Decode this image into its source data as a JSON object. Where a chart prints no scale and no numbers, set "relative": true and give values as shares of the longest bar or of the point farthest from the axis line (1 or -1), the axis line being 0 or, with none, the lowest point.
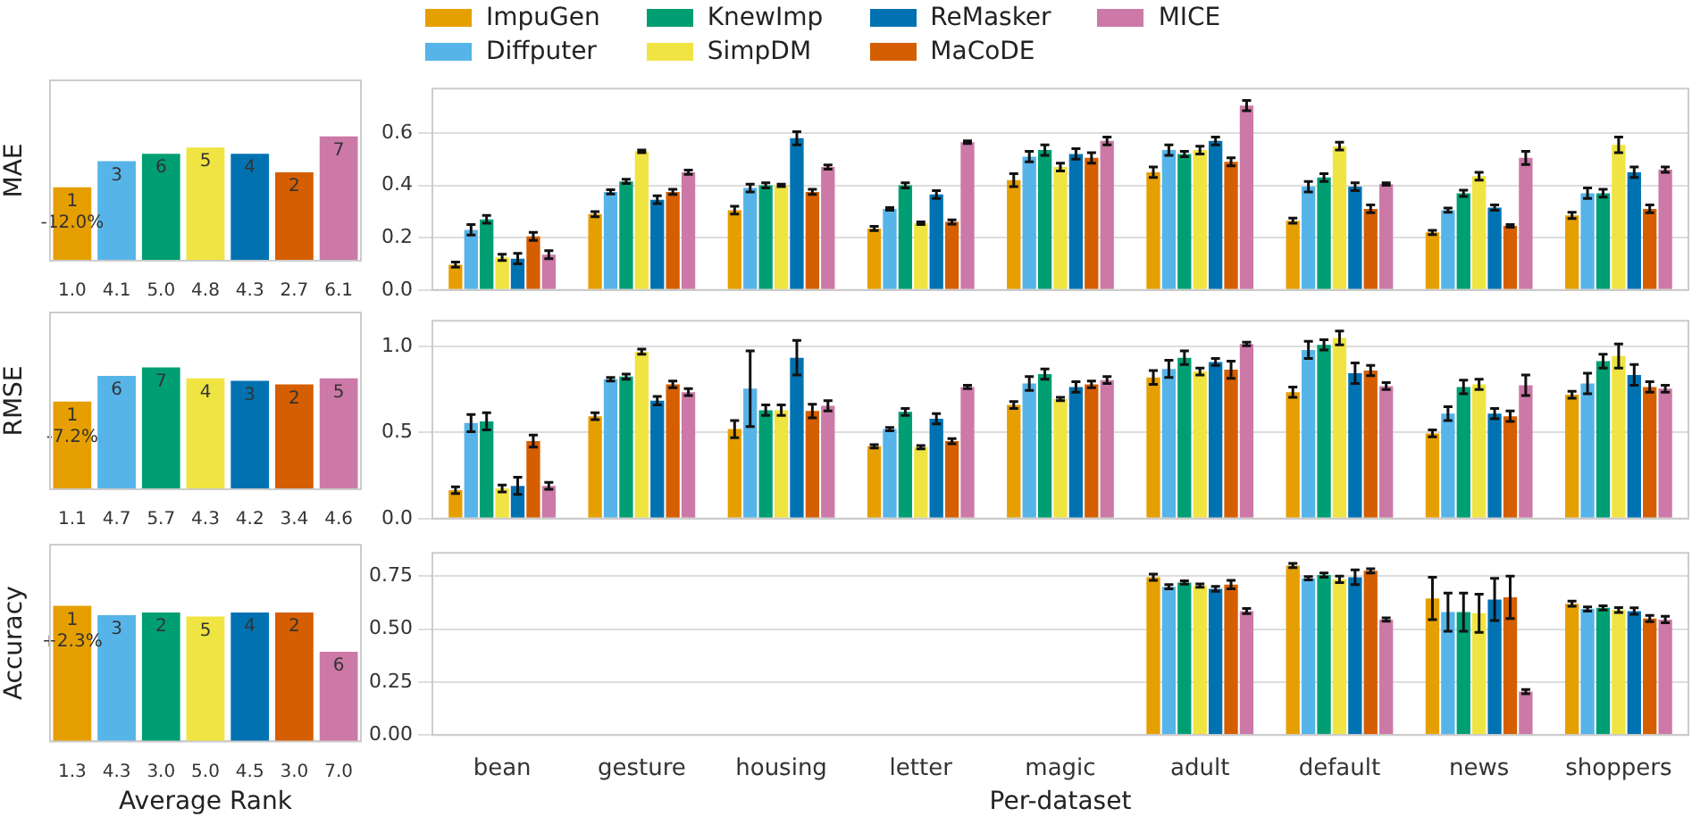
{
  "chart_data": [
    {
      "type": "bar",
      "ylabel": "MAE",
      "relative": true,
      "tick_labels": "x",
      "categories": [
        "1.0",
        "4.1",
        "5.0",
        "4.8",
        "4.3",
        "2.7",
        "6.1"
      ],
      "values": [
        0.59,
        0.8,
        0.86,
        0.91,
        0.86,
        0.71,
        1.0
      ],
      "colors": [
        "#e69f00",
        "#56b4e9",
        "#009e73",
        "#f0e442",
        "#0072b2",
        "#d55e00",
        "#cc79a7"
      ],
      "annotations": [
        {
          "text": "1\n-12.0%",
          "x": "1.0",
          "y": 0.59
        },
        {
          "text": "3",
          "x": "4.1",
          "y": 0.8
        },
        {
          "text": "6",
          "x": "5.0",
          "y": 0.86
        },
        {
          "text": "5",
          "x": "4.8",
          "y": 0.91
        },
        {
          "text": "4",
          "x": "4.3",
          "y": 0.86
        },
        {
          "text": "2",
          "x": "2.7",
          "y": 0.71
        },
        {
          "text": "7",
          "x": "6.1",
          "y": 1.0
        }
      ]
    },
    {
      "type": "bar",
      "legend": "top",
      "grid": "y",
      "tick_labels": "y",
      "categories": [
        null,
        null,
        null,
        null,
        null,
        null,
        null,
        null,
        null
      ],
      "ylim": [
        0,
        0.77
      ],
      "yticks": [
        {
          "value": 0,
          "label": "0.0"
        },
        {
          "value": 0.2,
          "label": "0.2"
        },
        {
          "value": 0.4,
          "label": "0.4"
        },
        {
          "value": 0.6,
          "label": "0.6"
        }
      ],
      "series": [
        {
          "name": "ImpuGen",
          "color": "#e69f00",
          "values": [
            0.097,
            0.29,
            0.305,
            0.235,
            0.42,
            0.45,
            0.265,
            0.22,
            0.285
          ],
          "errors": [
            0.01,
            0.01,
            0.015,
            0.008,
            0.025,
            0.02,
            0.01,
            0.008,
            0.012
          ]
        },
        {
          "name": "Diffputer",
          "color": "#56b4e9",
          "values": [
            0.23,
            0.375,
            0.39,
            0.31,
            0.51,
            0.535,
            0.395,
            0.305,
            0.37
          ],
          "errors": [
            0.02,
            0.008,
            0.015,
            0.005,
            0.02,
            0.02,
            0.02,
            0.008,
            0.02
          ]
        },
        {
          "name": "KnewImp",
          "color": "#009e73",
          "values": [
            0.27,
            0.415,
            0.4,
            0.4,
            0.535,
            0.52,
            0.43,
            0.37,
            0.37
          ],
          "errors": [
            0.015,
            0.008,
            0.01,
            0.01,
            0.02,
            0.01,
            0.015,
            0.012,
            0.015
          ]
        },
        {
          "name": "SimpDM",
          "color": "#f0e442",
          "values": [
            0.125,
            0.53,
            0.4,
            0.255,
            0.47,
            0.535,
            0.55,
            0.435,
            0.555
          ],
          "errors": [
            0.012,
            0.005,
            0.005,
            0.005,
            0.015,
            0.015,
            0.015,
            0.015,
            0.03
          ]
        },
        {
          "name": "ReMasker",
          "color": "#0072b2",
          "values": [
            0.12,
            0.345,
            0.58,
            0.365,
            0.52,
            0.57,
            0.395,
            0.315,
            0.45
          ],
          "errors": [
            0.02,
            0.015,
            0.025,
            0.015,
            0.02,
            0.015,
            0.015,
            0.01,
            0.02
          ]
        },
        {
          "name": "MaCoDE",
          "color": "#d55e00",
          "values": [
            0.205,
            0.375,
            0.375,
            0.26,
            0.505,
            0.49,
            0.31,
            0.245,
            0.31
          ],
          "errors": [
            0.015,
            0.01,
            0.01,
            0.008,
            0.02,
            0.015,
            0.015,
            0.005,
            0.015
          ]
        },
        {
          "name": "MICE",
          "color": "#cc79a7",
          "values": [
            0.135,
            0.45,
            0.47,
            0.565,
            0.57,
            0.705,
            0.405,
            0.505,
            0.46
          ],
          "errors": [
            0.015,
            0.008,
            0.008,
            0.005,
            0.015,
            0.02,
            0.005,
            0.025,
            0.01
          ]
        }
      ]
    },
    {
      "type": "bar",
      "ylabel": "RMSE",
      "relative": true,
      "tick_labels": "x",
      "categories": [
        "1.1",
        "4.7",
        "5.7",
        "4.3",
        "4.2",
        "3.4",
        "4.6"
      ],
      "values": [
        0.72,
        0.93,
        1.0,
        0.91,
        0.89,
        0.86,
        0.91
      ],
      "colors": [
        "#e69f00",
        "#56b4e9",
        "#009e73",
        "#f0e442",
        "#0072b2",
        "#d55e00",
        "#cc79a7"
      ],
      "annotations": [
        {
          "text": "1\n-7.2%",
          "x": "1.1",
          "y": 0.72
        },
        {
          "text": "6",
          "x": "4.7",
          "y": 0.93
        },
        {
          "text": "7",
          "x": "5.7",
          "y": 1.0
        },
        {
          "text": "4",
          "x": "4.3",
          "y": 0.91
        },
        {
          "text": "3",
          "x": "4.2",
          "y": 0.89
        },
        {
          "text": "2",
          "x": "3.4",
          "y": 0.86
        },
        {
          "text": "5",
          "x": "4.6",
          "y": 0.91
        }
      ]
    },
    {
      "type": "bar",
      "grid": "y",
      "tick_labels": "y",
      "categories": [
        null,
        null,
        null,
        null,
        null,
        null,
        null,
        null,
        null
      ],
      "ylim": [
        0,
        1.15
      ],
      "yticks": [
        {
          "value": 0,
          "label": "0.0"
        },
        {
          "value": 0.5,
          "label": "0.5"
        },
        {
          "value": 1,
          "label": "1.0"
        }
      ],
      "series": [
        {
          "color": "#e69f00",
          "values": [
            0.165,
            0.595,
            0.52,
            0.42,
            0.66,
            0.82,
            0.735,
            0.495,
            0.72
          ],
          "errors": [
            0.02,
            0.02,
            0.05,
            0.01,
            0.02,
            0.04,
            0.03,
            0.02,
            0.02
          ]
        },
        {
          "color": "#56b4e9",
          "values": [
            0.555,
            0.81,
            0.755,
            0.52,
            0.785,
            0.87,
            0.98,
            0.61,
            0.785
          ],
          "errors": [
            0.05,
            0.01,
            0.22,
            0.01,
            0.04,
            0.05,
            0.05,
            0.04,
            0.06
          ]
        },
        {
          "color": "#009e73",
          "values": [
            0.565,
            0.825,
            0.63,
            0.62,
            0.84,
            0.935,
            1.01,
            0.765,
            0.915
          ],
          "errors": [
            0.05,
            0.015,
            0.03,
            0.02,
            0.03,
            0.04,
            0.03,
            0.04,
            0.04
          ]
        },
        {
          "color": "#f0e442",
          "values": [
            0.175,
            0.97,
            0.63,
            0.415,
            0.695,
            0.855,
            1.05,
            0.78,
            0.945
          ],
          "errors": [
            0.02,
            0.015,
            0.03,
            0.01,
            0.01,
            0.02,
            0.04,
            0.03,
            0.07
          ]
        },
        {
          "color": "#0072b2",
          "values": [
            0.19,
            0.685,
            0.935,
            0.58,
            0.765,
            0.91,
            0.845,
            0.61,
            0.835
          ],
          "errors": [
            0.05,
            0.025,
            0.1,
            0.03,
            0.03,
            0.02,
            0.06,
            0.03,
            0.06
          ]
        },
        {
          "color": "#d55e00",
          "values": [
            0.45,
            0.78,
            0.625,
            0.45,
            0.78,
            0.865,
            0.86,
            0.595,
            0.765
          ],
          "errors": [
            0.035,
            0.02,
            0.04,
            0.015,
            0.02,
            0.05,
            0.03,
            0.03,
            0.03
          ]
        },
        {
          "color": "#cc79a7",
          "values": [
            0.19,
            0.735,
            0.655,
            0.765,
            0.805,
            1.015,
            0.77,
            0.775,
            0.755
          ],
          "errors": [
            0.02,
            0.02,
            0.03,
            0.01,
            0.02,
            0.01,
            0.02,
            0.06,
            0.02
          ]
        }
      ]
    },
    {
      "type": "bar",
      "ylabel": "Accuracy",
      "xlabel": "Average Rank",
      "relative": true,
      "tick_labels": "x",
      "categories": [
        "1.3",
        "4.3",
        "3.0",
        "5.0",
        "4.5",
        "3.0",
        "7.0"
      ],
      "values": [
        1.0,
        0.93,
        0.95,
        0.92,
        0.95,
        0.95,
        0.66
      ],
      "colors": [
        "#e69f00",
        "#56b4e9",
        "#009e73",
        "#f0e442",
        "#0072b2",
        "#d55e00",
        "#cc79a7"
      ],
      "annotations": [
        {
          "text": "1\n+2.3%",
          "x": "1.3",
          "y": 1.0
        },
        {
          "text": "3",
          "x": "4.3",
          "y": 0.93
        },
        {
          "text": "2",
          "x": "3.0",
          "y": 0.95
        },
        {
          "text": "5",
          "x": "5.0",
          "y": 0.92
        },
        {
          "text": "4",
          "x": "4.5",
          "y": 0.95
        },
        "2",
        {
          "text": "6",
          "x": "7.0",
          "y": 0.66
        }
      ]
    },
    {
      "type": "bar",
      "grid": "y",
      "xlabel": "Per-dataset",
      "categories": [
        "bean",
        "gesture",
        "housing",
        "letter",
        "magic",
        "adult",
        "default",
        "news",
        "shoppers"
      ],
      "ylim": [
        0,
        0.86
      ],
      "yticks": [
        {
          "value": 0,
          "label": "0.00"
        },
        {
          "value": 0.25,
          "label": "0.25"
        },
        {
          "value": 0.5,
          "label": "0.50"
        },
        {
          "value": 0.75,
          "label": "0.75"
        }
      ],
      "series": [
        {
          "color": "#e69f00",
          "values": [
            null,
            null,
            null,
            null,
            null,
            0.745,
            0.8,
            0.645,
            0.62
          ],
          "errors": [
            null,
            null,
            null,
            null,
            null,
            0.015,
            0.01,
            0.1,
            0.012
          ]
        },
        {
          "color": "#56b4e9",
          "values": [
            null,
            null,
            null,
            null,
            null,
            0.7,
            0.74,
            0.58,
            0.595
          ],
          "errors": [
            null,
            null,
            null,
            null,
            null,
            0.01,
            0.008,
            0.09,
            0.01
          ]
        },
        {
          "color": "#009e73",
          "values": [
            null,
            null,
            null,
            null,
            null,
            0.72,
            0.755,
            0.58,
            0.6
          ],
          "errors": [
            null,
            null,
            null,
            null,
            null,
            0.008,
            0.01,
            0.09,
            0.01
          ]
        },
        {
          "color": "#f0e442",
          "values": [
            null,
            null,
            null,
            null,
            null,
            0.705,
            0.735,
            0.575,
            0.59
          ],
          "errors": [
            null,
            null,
            null,
            null,
            null,
            0.008,
            0.015,
            0.09,
            0.012
          ]
        },
        {
          "color": "#0072b2",
          "values": [
            null,
            null,
            null,
            null,
            null,
            0.69,
            0.745,
            0.64,
            0.585
          ],
          "errors": [
            null,
            null,
            null,
            null,
            null,
            0.012,
            0.035,
            0.1,
            0.015
          ]
        },
        {
          "color": "#d55e00",
          "values": [
            null,
            null,
            null,
            null,
            null,
            0.71,
            0.775,
            0.65,
            0.55
          ],
          "errors": [
            null,
            null,
            null,
            null,
            null,
            0.02,
            0.01,
            0.1,
            0.015
          ]
        },
        {
          "color": "#cc79a7",
          "values": [
            null,
            null,
            null,
            null,
            null,
            0.585,
            0.545,
            0.205,
            0.545
          ],
          "errors": [
            null,
            null,
            null,
            null,
            null,
            0.012,
            0.008,
            0.01,
            0.015
          ]
        }
      ]
    }
  ]
}
